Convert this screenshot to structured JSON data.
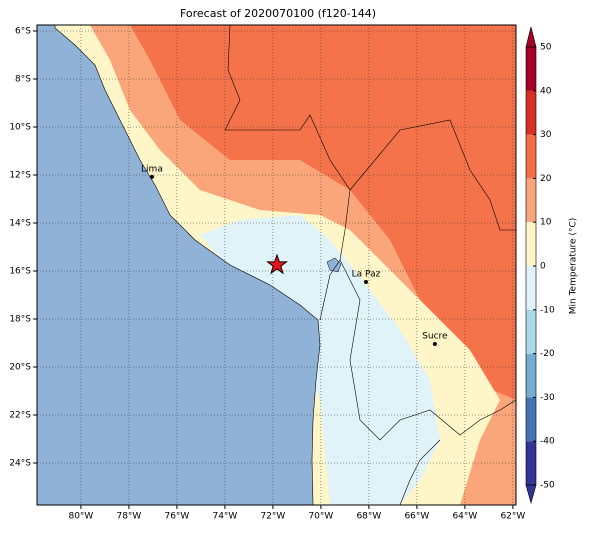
{
  "title": "Forecast of 2020070100 (f120-144)",
  "map": {
    "lon_range": [
      -81.83,
      -61.87
    ],
    "lat_range": [
      -5.75,
      -25.75
    ],
    "lon_ticks": [
      {
        "value": -80,
        "label": "80°W"
      },
      {
        "value": -78,
        "label": "78°W"
      },
      {
        "value": -76,
        "label": "76°W"
      },
      {
        "value": -74,
        "label": "74°W"
      },
      {
        "value": -72,
        "label": "72°W"
      },
      {
        "value": -70,
        "label": "70°W"
      },
      {
        "value": -68,
        "label": "68°W"
      },
      {
        "value": -66,
        "label": "66°W"
      },
      {
        "value": -64,
        "label": "64°W"
      },
      {
        "value": -62,
        "label": "62°W"
      }
    ],
    "lat_ticks": [
      {
        "value": -6,
        "label": "6°S"
      },
      {
        "value": -8,
        "label": "8°S"
      },
      {
        "value": -10,
        "label": "10°S"
      },
      {
        "value": -12,
        "label": "12°S"
      },
      {
        "value": -14,
        "label": "14°S"
      },
      {
        "value": -16,
        "label": "16°S"
      },
      {
        "value": -18,
        "label": "18°S"
      },
      {
        "value": -20,
        "label": "20°S"
      },
      {
        "value": -22,
        "label": "22°S"
      },
      {
        "value": -24,
        "label": "24°S"
      }
    ],
    "cities": [
      {
        "name": "Lima",
        "lon": -77.04,
        "lat": -12.08
      },
      {
        "name": "La Paz",
        "lon": -68.12,
        "lat": -16.46
      },
      {
        "name": "Sucre",
        "lon": -65.25,
        "lat": -19.04
      }
    ],
    "star": {
      "lon": -71.83,
      "lat": -15.75
    }
  },
  "colorbar": {
    "label": "Min Temperature (°C)",
    "range": [
      -50,
      50
    ],
    "ticks": [
      -50,
      -40,
      -30,
      -20,
      -10,
      0,
      10,
      20,
      30,
      40,
      50
    ],
    "colors": [
      "#313695",
      "#4575b4",
      "#74add1",
      "#abd9e9",
      "#e0f3f8",
      "#fef6c8",
      "#fba57a",
      "#f46d43",
      "#d73027",
      "#a50026"
    ]
  }
}
